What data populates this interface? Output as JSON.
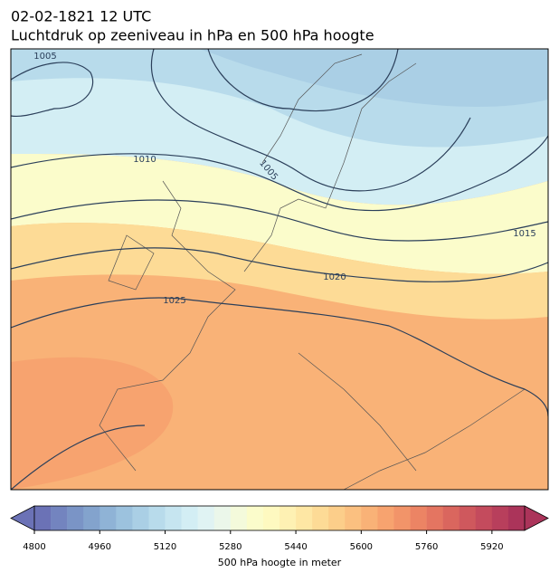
{
  "header": {
    "title": "02-02-1821 12 UTC",
    "subtitle": "Luchtdruk op zeeniveau in hPa en 500 hPa hoogte"
  },
  "map": {
    "isobar_labels": [
      "1005",
      "1010",
      "1005",
      "1015",
      "1020",
      "1025"
    ]
  },
  "colorbar": {
    "lim": [
      4800,
      6000
    ],
    "ticks": [
      4800,
      4960,
      5120,
      5280,
      5440,
      5600,
      5760,
      5920
    ],
    "label": "500 hPa hoogte in meter",
    "colors": [
      "#6b72b6",
      "#7384bf",
      "#7a94c6",
      "#83a3cd",
      "#8fb3d6",
      "#9cc2de",
      "#aacfe5",
      "#b8dbeb",
      "#c6e5f0",
      "#d3eef4",
      "#e0f3f3",
      "#ebf7ea",
      "#f4fadb",
      "#fbfccb",
      "#fef9c0",
      "#fef1b3",
      "#fee7a4",
      "#fddb96",
      "#fcce8a",
      "#fbc080",
      "#f9b277",
      "#f7a36f",
      "#f29469",
      "#ec8464",
      "#e47561",
      "#da665e",
      "#cf585d",
      "#c44b5d",
      "#b83f5c",
      "#ab345a"
    ]
  }
}
